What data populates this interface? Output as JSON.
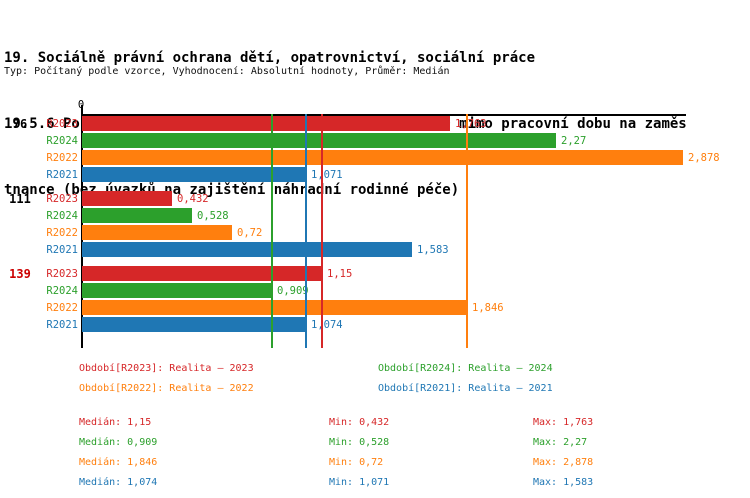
{
  "chart_data": {
    "type": "bar",
    "orientation": "horizontal",
    "title": {
      "line1": "19. Sociálně právní ochrana dětí, opatrovnictví, sociální práce",
      "line2": "19.5.6 Počet zásahů v rámci pohotovostní služby OSPOD mimo pracovní dobu na zaměs",
      "line3": "tnance (bez úvazků na zajištění náhradní rodinné péče)",
      "subtitle": "Typ: Počítaný podle vzorce, Vyhodnocení: Absolutní hodnoty, Průměr: Medián"
    },
    "x_axis": {
      "min": 0,
      "origin_tick_label": "0",
      "max_visible": 2.893,
      "grid": false
    },
    "series": [
      {
        "id": "R2023",
        "name": "Realita – 2023",
        "color": "#d62728"
      },
      {
        "id": "R2024",
        "name": "Realita – 2024",
        "color": "#2ca02c"
      },
      {
        "id": "R2022",
        "name": "Realita – 2022",
        "color": "#ff7f0e"
      },
      {
        "id": "R2021",
        "name": "Realita – 2021",
        "color": "#1f77b4"
      }
    ],
    "groups": [
      {
        "label": "76",
        "highlighted": false,
        "bars": [
          {
            "series": "R2023",
            "value": 1.763,
            "label": "1,763"
          },
          {
            "series": "R2024",
            "value": 2.27,
            "label": "2,27"
          },
          {
            "series": "R2022",
            "value": 2.878,
            "label": "2,878"
          },
          {
            "series": "R2021",
            "value": 1.071,
            "label": "1,071"
          }
        ]
      },
      {
        "label": "111",
        "highlighted": false,
        "bars": [
          {
            "series": "R2023",
            "value": 0.432,
            "label": "0,432"
          },
          {
            "series": "R2024",
            "value": 0.528,
            "label": "0,528"
          },
          {
            "series": "R2022",
            "value": 0.72,
            "label": "0,72"
          },
          {
            "series": "R2021",
            "value": 1.583,
            "label": "1,583"
          }
        ]
      },
      {
        "label": "139",
        "highlighted": true,
        "bars": [
          {
            "series": "R2023",
            "value": 1.15,
            "label": "1,15"
          },
          {
            "series": "R2024",
            "value": 0.909,
            "label": "0,909"
          },
          {
            "series": "R2022",
            "value": 1.846,
            "label": "1,846"
          },
          {
            "series": "R2021",
            "value": 1.074,
            "label": "1,074"
          }
        ]
      }
    ],
    "median_lines": [
      {
        "series": "R2023",
        "value": 1.15
      },
      {
        "series": "R2024",
        "value": 0.909
      },
      {
        "series": "R2022",
        "value": 1.846
      },
      {
        "series": "R2021",
        "value": 1.074
      }
    ],
    "legend_rows": [
      [
        {
          "series": "R2023",
          "label": "Období[R2023]: Realita – 2023"
        },
        {
          "series": "R2024",
          "label": "Období[R2024]: Realita – 2024"
        }
      ],
      [
        {
          "series": "R2022",
          "label": "Období[R2022]: Realita – 2022"
        },
        {
          "series": "R2021",
          "label": "Období[R2021]: Realita – 2021"
        }
      ]
    ],
    "stats_rows": [
      {
        "series": "R2023",
        "median": "Medián: 1,15",
        "min": "Min: 0,432",
        "max": "Max: 1,763"
      },
      {
        "series": "R2024",
        "median": "Medián: 0,909",
        "min": "Min: 0,528",
        "max": "Max: 2,27"
      },
      {
        "series": "R2022",
        "median": "Medián: 1,846",
        "min": "Min: 0,72",
        "max": "Max: 2,878"
      },
      {
        "series": "R2021",
        "median": "Medián: 1,074",
        "min": "Min: 1,071",
        "max": "Max: 1,583"
      }
    ],
    "colors": {
      "axis": "#000000",
      "highlight_group_label": "#cc0000",
      "group_label": "#000000",
      "background": "#ffffff"
    }
  }
}
